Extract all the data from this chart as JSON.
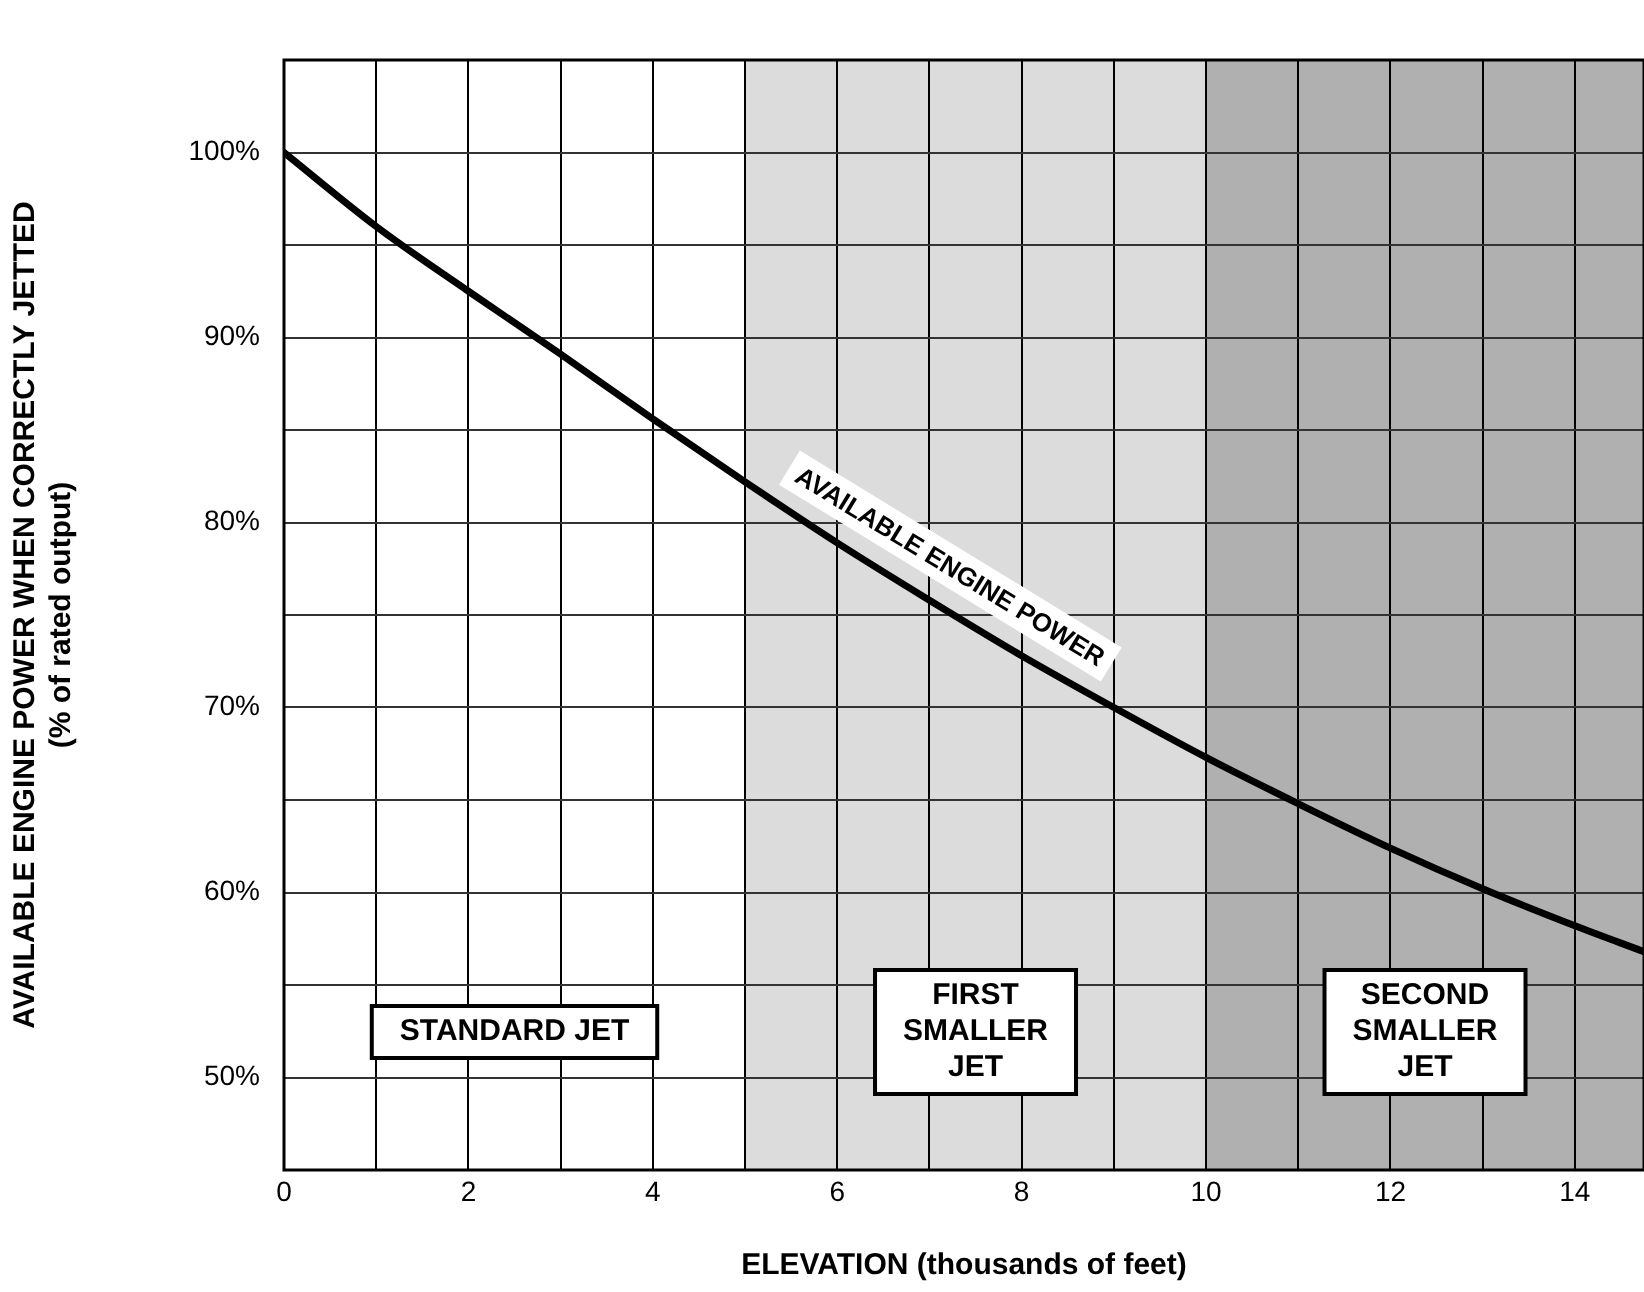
{
  "chart_data": {
    "type": "line",
    "xlabel": "ELEVATION (thousands of feet)",
    "ylabel": "AVAILABLE ENGINE POWER WHEN CORRECTLY JETTED\n(% of rated output)",
    "xlim": [
      0,
      14.75
    ],
    "ylim": [
      45,
      105
    ],
    "xticks": [
      0,
      {
        "value": 1,
        "label": null
      },
      2,
      {
        "value": 3,
        "label": null
      },
      4,
      {
        "value": 5,
        "label": null
      },
      6,
      {
        "value": 7,
        "label": null
      },
      8,
      {
        "value": 9,
        "label": null
      },
      10,
      {
        "value": 11,
        "label": null
      },
      12,
      {
        "value": 13,
        "label": null
      },
      14
    ],
    "yticks": [
      {
        "value": 50,
        "label": "50%"
      },
      {
        "value": 55,
        "label": null
      },
      {
        "value": 60,
        "label": "60%"
      },
      {
        "value": 65,
        "label": null
      },
      {
        "value": 70,
        "label": "70%"
      },
      {
        "value": 75,
        "label": null
      },
      {
        "value": 80,
        "label": "80%"
      },
      {
        "value": 85,
        "label": null
      },
      {
        "value": 90,
        "label": "90%"
      },
      {
        "value": 95,
        "label": null
      },
      {
        "value": 100,
        "label": "100%"
      }
    ],
    "grid": true,
    "legend": false,
    "series": [
      {
        "name": "AVAILABLE ENGINE POWER",
        "color": "#000000",
        "x": [
          0,
          1,
          2,
          3,
          4,
          5,
          6,
          7,
          8,
          9,
          10,
          11,
          12,
          13,
          14,
          14.75
        ],
        "values": [
          100,
          96,
          92.5,
          89.1,
          85.6,
          82.2,
          78.9,
          75.8,
          72.8,
          70.0,
          67.3,
          64.8,
          62.4,
          60.2,
          58.2,
          56.8
        ]
      }
    ],
    "bands": [
      {
        "axis": "x",
        "from": 5,
        "to": 10,
        "label": "FIRST\nSMALLER\nJET",
        "color": "#dcdcdc"
      },
      {
        "axis": "x",
        "from": 10,
        "to": 14.75,
        "label": "SECOND\nSMALLER\nJET",
        "color": "#b0b0b0"
      }
    ],
    "annotations": [
      "STANDARD JET"
    ]
  }
}
